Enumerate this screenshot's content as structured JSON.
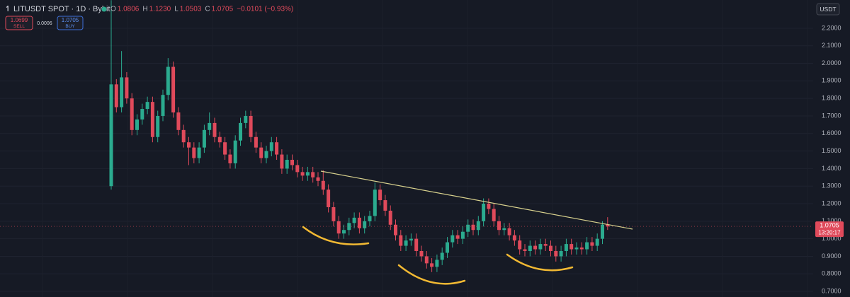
{
  "header": {
    "title": "LITUSDT SPOT · 1D · Bybit",
    "ohlc": [
      {
        "key": "O",
        "value": "1.0806"
      },
      {
        "key": "H",
        "value": "1.1230"
      },
      {
        "key": "L",
        "value": "1.0503"
      },
      {
        "key": "C",
        "value": "1.0705"
      }
    ],
    "change": "−0.0101 (−0.93%)"
  },
  "order": {
    "sell_price": "1.0699",
    "sell_label": "SELL",
    "spread": "0.0006",
    "buy_price": "1.0705",
    "buy_label": "BUY"
  },
  "currency": "USDT",
  "price_tag": {
    "price": "1.0705",
    "countdown": "13:20:17"
  },
  "chart_data": {
    "type": "candlestick",
    "up_color": "#2bab8f",
    "down_color": "#e04a5b",
    "grid": true,
    "ylim": [
      0.668,
      2.361
    ],
    "yticks": [
      {
        "value": 2.2,
        "label": "2.2000"
      },
      {
        "value": 2.1,
        "label": "2.1000"
      },
      {
        "value": 2.0,
        "label": "2.0000"
      },
      {
        "value": 1.9,
        "label": "1.9000"
      },
      {
        "value": 1.8,
        "label": "1.8000"
      },
      {
        "value": 1.7,
        "label": "1.7000"
      },
      {
        "value": 1.6,
        "label": "1.6000"
      },
      {
        "value": 1.5,
        "label": "1.5000"
      },
      {
        "value": 1.4,
        "label": "1.4000"
      },
      {
        "value": 1.3,
        "label": "1.3000"
      },
      {
        "value": 1.2,
        "label": "1.2000"
      },
      {
        "value": 1.1,
        "label": "1.1000"
      },
      {
        "value": 1.0,
        "label": "1.0000"
      },
      {
        "value": 0.9,
        "label": "0.9000"
      },
      {
        "value": 0.8,
        "label": "0.8000"
      },
      {
        "value": 0.7,
        "label": "0.7000"
      }
    ],
    "open": [
      1.3,
      1.88,
      1.75,
      1.92,
      1.8,
      1.62,
      1.68,
      1.74,
      1.78,
      1.58,
      1.7,
      1.82,
      1.98,
      1.72,
      1.62,
      1.55,
      1.52,
      1.46,
      1.52,
      1.62,
      1.66,
      1.58,
      1.55,
      1.48,
      1.43,
      1.56,
      1.66,
      1.7,
      1.58,
      1.52,
      1.46,
      1.5,
      1.55,
      1.48,
      1.4,
      1.45,
      1.42,
      1.38,
      1.36,
      1.38,
      1.35,
      1.33,
      1.28,
      1.18,
      1.1,
      1.03,
      1.05,
      1.09,
      1.12,
      1.06,
      1.1,
      1.13,
      1.28,
      1.22,
      1.16,
      1.08,
      1.02,
      0.96,
      0.99,
      1.0,
      0.93,
      0.9,
      0.86,
      0.84,
      0.88,
      0.92,
      0.98,
      1.02,
      1.0,
      1.04,
      1.08,
      1.05,
      1.1,
      1.2,
      1.17,
      1.1,
      1.05,
      1.06,
      1.02,
      0.99,
      0.94,
      0.93,
      0.96,
      0.94,
      0.97,
      0.96,
      0.93,
      0.9,
      0.93,
      0.97,
      0.94,
      0.95,
      0.94,
      0.98,
      0.96,
      1.0,
      1.0806
    ],
    "high": [
      2.36,
      1.91,
      2.07,
      1.95,
      1.83,
      1.71,
      1.77,
      1.81,
      1.81,
      1.73,
      1.85,
      2.03,
      2.01,
      1.75,
      1.65,
      1.58,
      1.55,
      1.55,
      1.65,
      1.72,
      1.69,
      1.61,
      1.58,
      1.51,
      1.59,
      1.69,
      1.73,
      1.73,
      1.61,
      1.55,
      1.53,
      1.58,
      1.58,
      1.51,
      1.48,
      1.48,
      1.45,
      1.41,
      1.41,
      1.41,
      1.38,
      1.39,
      1.31,
      1.21,
      1.13,
      1.08,
      1.12,
      1.15,
      1.15,
      1.13,
      1.16,
      1.32,
      1.31,
      1.25,
      1.19,
      1.11,
      1.05,
      1.02,
      1.03,
      1.03,
      0.96,
      0.93,
      0.89,
      0.91,
      0.95,
      1.01,
      1.05,
      1.05,
      1.07,
      1.11,
      1.11,
      1.13,
      1.23,
      1.23,
      1.2,
      1.13,
      1.09,
      1.09,
      1.05,
      1.02,
      0.97,
      0.99,
      0.99,
      1.0,
      1.0,
      0.99,
      0.96,
      0.96,
      1.0,
      1.0,
      0.98,
      0.98,
      1.01,
      1.01,
      1.03,
      1.1,
      1.123
    ],
    "low": [
      1.28,
      1.72,
      1.72,
      1.77,
      1.59,
      1.59,
      1.65,
      1.71,
      1.55,
      1.55,
      1.67,
      1.79,
      1.69,
      1.59,
      1.52,
      1.42,
      1.43,
      1.43,
      1.49,
      1.59,
      1.55,
      1.52,
      1.45,
      1.4,
      1.4,
      1.53,
      1.63,
      1.55,
      1.49,
      1.43,
      1.43,
      1.47,
      1.45,
      1.37,
      1.37,
      1.39,
      1.35,
      1.33,
      1.33,
      1.32,
      1.3,
      1.25,
      1.15,
      1.07,
      1.0,
      1.0,
      1.02,
      1.06,
      1.03,
      1.03,
      1.07,
      1.1,
      1.19,
      1.13,
      1.05,
      0.99,
      0.93,
      0.93,
      0.96,
      0.9,
      0.87,
      0.83,
      0.81,
      0.81,
      0.85,
      0.89,
      0.95,
      0.97,
      0.97,
      1.01,
      1.02,
      1.02,
      1.07,
      1.14,
      1.07,
      1.02,
      1.02,
      0.99,
      0.96,
      0.91,
      0.9,
      0.9,
      0.91,
      0.91,
      0.93,
      0.9,
      0.87,
      0.87,
      0.9,
      0.91,
      0.91,
      0.91,
      0.91,
      0.93,
      0.93,
      0.97,
      1.0503
    ],
    "close": [
      1.88,
      1.75,
      1.92,
      1.8,
      1.62,
      1.68,
      1.74,
      1.78,
      1.58,
      1.7,
      1.82,
      1.98,
      1.72,
      1.62,
      1.55,
      1.52,
      1.46,
      1.52,
      1.62,
      1.66,
      1.58,
      1.55,
      1.48,
      1.43,
      1.56,
      1.66,
      1.7,
      1.58,
      1.52,
      1.46,
      1.5,
      1.55,
      1.48,
      1.4,
      1.45,
      1.42,
      1.38,
      1.36,
      1.38,
      1.35,
      1.33,
      1.28,
      1.18,
      1.1,
      1.03,
      1.05,
      1.09,
      1.12,
      1.06,
      1.1,
      1.13,
      1.28,
      1.22,
      1.16,
      1.08,
      1.02,
      0.96,
      0.99,
      1.0,
      0.93,
      0.9,
      0.86,
      0.84,
      0.88,
      0.92,
      0.98,
      1.02,
      1.0,
      1.04,
      1.08,
      1.05,
      1.1,
      1.2,
      1.17,
      1.1,
      1.05,
      1.06,
      1.02,
      0.99,
      0.94,
      0.93,
      0.96,
      0.94,
      0.97,
      0.96,
      0.93,
      0.9,
      0.93,
      0.97,
      0.94,
      0.95,
      0.94,
      0.98,
      0.96,
      1.0,
      1.0806,
      1.0705
    ]
  }
}
